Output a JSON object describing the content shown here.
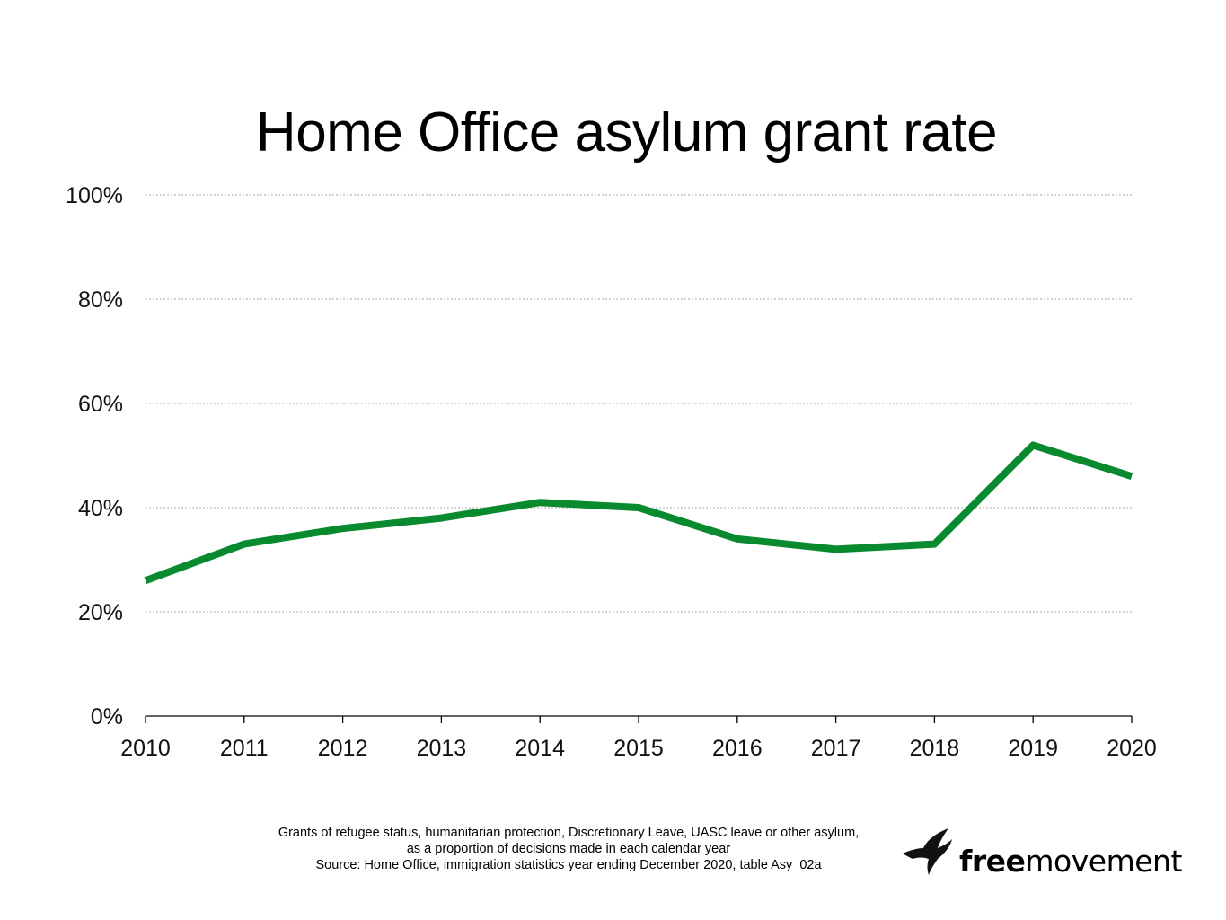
{
  "chart_data": {
    "type": "line",
    "title": "Home Office asylum grant rate",
    "x": [
      "2010",
      "2011",
      "2012",
      "2013",
      "2014",
      "2015",
      "2016",
      "2017",
      "2018",
      "2019",
      "2020"
    ],
    "series": [
      {
        "values": [
          26,
          33,
          36,
          38,
          41,
          40,
          34,
          32,
          33,
          52,
          46
        ],
        "color": "#0a8a2e"
      }
    ],
    "ylim": [
      0,
      100
    ],
    "yticks": [
      0,
      20,
      40,
      60,
      80,
      100
    ],
    "ytick_labels": [
      "0%",
      "20%",
      "40%",
      "60%",
      "80%",
      "100%"
    ],
    "grid": true,
    "grid_color": "#aaaaaa"
  },
  "footnote": {
    "line1": "Grants of refugee status, humanitarian protection, Discretionary Leave, UASC leave or other asylum,",
    "line2": "as a proportion of decisions made in each calendar year",
    "line3": "Source: Home Office, immigration statistics year ending December 2020, table Asy_02a"
  },
  "logo": {
    "bold": "free",
    "regular": "movement",
    "icon": "bird-icon"
  }
}
